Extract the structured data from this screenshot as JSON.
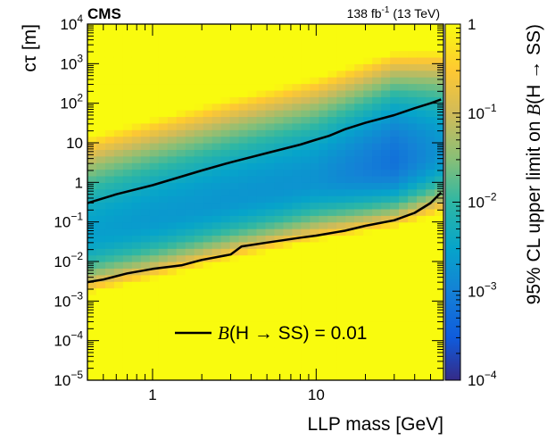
{
  "chart_data": {
    "type": "heatmap",
    "experiment_label": "CMS",
    "lumi_label": {
      "value": "138 fb",
      "exp": "-1",
      "energy": " (13 TeV)"
    },
    "xlabel": "LLP mass [GeV]",
    "ylabel": "cτ [m]",
    "colorbar_label": {
      "prefix": "95% CL upper limit on ",
      "B": "B",
      "suffix": "(H → SS)"
    },
    "x_scale": "log",
    "y_scale": "log",
    "z_scale": "log",
    "xlim": [
      0.4,
      60
    ],
    "ylim": [
      1e-05,
      10000
    ],
    "zlim": [
      0.0001,
      1
    ],
    "x_ticks": [
      {
        "value": 1,
        "label": "1"
      },
      {
        "value": 10,
        "label": "10"
      }
    ],
    "y_ticks": [
      {
        "value": 1e-05,
        "base": "10",
        "exp": "−5"
      },
      {
        "value": 0.0001,
        "base": "10",
        "exp": "−4"
      },
      {
        "value": 0.001,
        "base": "10",
        "exp": "−3"
      },
      {
        "value": 0.01,
        "base": "10",
        "exp": "−2"
      },
      {
        "value": 0.1,
        "base": "10",
        "exp": "−1"
      },
      {
        "value": 1,
        "base": "1",
        "exp": ""
      },
      {
        "value": 10,
        "base": "10",
        "exp": ""
      },
      {
        "value": 100,
        "base": "10",
        "exp": "2"
      },
      {
        "value": 1000,
        "base": "10",
        "exp": "3"
      },
      {
        "value": 10000,
        "base": "10",
        "exp": "4"
      }
    ],
    "z_ticks": [
      {
        "value": 0.0001,
        "base": "10",
        "exp": "−4"
      },
      {
        "value": 0.001,
        "base": "10",
        "exp": "−3"
      },
      {
        "value": 0.01,
        "base": "10",
        "exp": "−2"
      },
      {
        "value": 0.1,
        "base": "10",
        "exp": "−1"
      },
      {
        "value": 1,
        "base": "1",
        "exp": ""
      }
    ],
    "heatmap_model": {
      "center_log_ctau": [
        {
          "mass": 0.4,
          "value": -1.3
        },
        {
          "mass": 1,
          "value": -0.9
        },
        {
          "mass": 3,
          "value": -0.4
        },
        {
          "mass": 10,
          "value": 0.1
        },
        {
          "mass": 30,
          "value": 0.55
        },
        {
          "mass": 60,
          "value": 0.8
        }
      ],
      "min_log_limit": [
        {
          "mass": 0.4,
          "value": -2.55
        },
        {
          "mass": 1,
          "value": -2.65
        },
        {
          "mass": 10,
          "value": -2.75
        },
        {
          "mass": 30,
          "value": -3.2
        },
        {
          "mass": 60,
          "value": -2.7
        }
      ],
      "upper_width": 1.55,
      "lower_width": 0.95
    },
    "contour": {
      "name_prefix": "B",
      "name_suffix": "(H → SS) = 0.01",
      "level": 0.01,
      "upper": [
        {
          "x": 0.4,
          "y": 0.3
        },
        {
          "x": 0.6,
          "y": 0.5
        },
        {
          "x": 1,
          "y": 0.85
        },
        {
          "x": 2,
          "y": 2.0
        },
        {
          "x": 3,
          "y": 3.2
        },
        {
          "x": 5,
          "y": 5.5
        },
        {
          "x": 8,
          "y": 9
        },
        {
          "x": 10,
          "y": 12
        },
        {
          "x": 12,
          "y": 15
        },
        {
          "x": 15,
          "y": 22
        },
        {
          "x": 20,
          "y": 32
        },
        {
          "x": 30,
          "y": 50
        },
        {
          "x": 40,
          "y": 75
        },
        {
          "x": 50,
          "y": 100
        },
        {
          "x": 58,
          "y": 125
        }
      ],
      "lower": [
        {
          "x": 0.4,
          "y": 0.003
        },
        {
          "x": 0.5,
          "y": 0.0035
        },
        {
          "x": 0.7,
          "y": 0.005
        },
        {
          "x": 1,
          "y": 0.0065
        },
        {
          "x": 1.5,
          "y": 0.008
        },
        {
          "x": 2,
          "y": 0.011
        },
        {
          "x": 3,
          "y": 0.015
        },
        {
          "x": 3.5,
          "y": 0.024
        },
        {
          "x": 5,
          "y": 0.03
        },
        {
          "x": 8,
          "y": 0.04
        },
        {
          "x": 10,
          "y": 0.045
        },
        {
          "x": 15,
          "y": 0.06
        },
        {
          "x": 20,
          "y": 0.08
        },
        {
          "x": 30,
          "y": 0.11
        },
        {
          "x": 40,
          "y": 0.17
        },
        {
          "x": 50,
          "y": 0.3
        },
        {
          "x": 58,
          "y": 0.55
        }
      ]
    },
    "legend_position": "bottom-right"
  }
}
